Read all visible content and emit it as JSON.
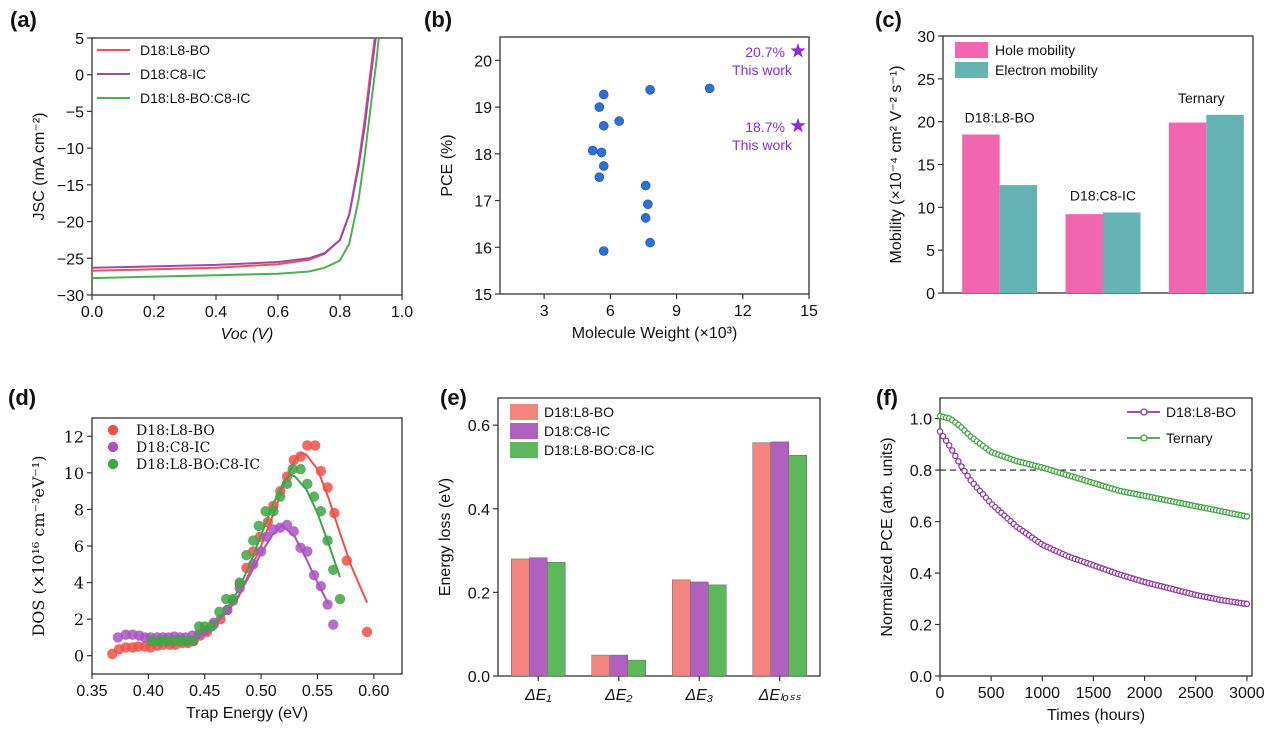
{
  "chart_data": [
    {
      "panel": "(a)",
      "type": "line",
      "xlabel": "Voc (V)",
      "ylabel": "JSC (mA cm⁻²)",
      "xlim": [
        0,
        1.0
      ],
      "ylim": [
        -30,
        5
      ],
      "xticks": [
        0,
        0.2,
        0.4,
        0.6,
        0.8,
        1.0
      ],
      "xtick_labels": [
        "0.0",
        "0.2",
        "0.4",
        "0.6",
        "0.8",
        "1.0"
      ],
      "yticks": [
        -30,
        -25,
        -20,
        -15,
        -10,
        -5,
        0,
        5
      ],
      "ytick_labels": [
        "−30",
        "−25",
        "−20",
        "−15",
        "−10",
        "−5",
        "0",
        "5"
      ],
      "legend": "top-left",
      "series": [
        {
          "name": "D18:L8-BO",
          "color": "#e8545c",
          "x": [
            0,
            0.2,
            0.4,
            0.6,
            0.7,
            0.75,
            0.8,
            0.83,
            0.86,
            0.88,
            0.9,
            0.912
          ],
          "y": [
            -26.7,
            -26.5,
            -26.3,
            -25.8,
            -25.2,
            -24.4,
            -22.5,
            -19,
            -12,
            -6,
            1,
            5
          ]
        },
        {
          "name": "D18:C8-IC",
          "color": "#a04aa8",
          "x": [
            0,
            0.2,
            0.4,
            0.6,
            0.7,
            0.75,
            0.8,
            0.83,
            0.86,
            0.88,
            0.9,
            0.915
          ],
          "y": [
            -26.3,
            -26.1,
            -25.9,
            -25.5,
            -25.0,
            -24.3,
            -22.5,
            -19,
            -12.5,
            -7,
            0,
            5
          ]
        },
        {
          "name": "D18:L8-BO:C8-IC",
          "color": "#4caf50",
          "x": [
            0,
            0.2,
            0.4,
            0.6,
            0.7,
            0.75,
            0.8,
            0.83,
            0.86,
            0.88,
            0.9,
            0.915,
            0.925
          ],
          "y": [
            -27.7,
            -27.5,
            -27.3,
            -27.1,
            -26.8,
            -26.3,
            -25.3,
            -23,
            -17,
            -11,
            -4,
            1,
            5
          ]
        }
      ]
    },
    {
      "panel": "(b)",
      "type": "scatter",
      "xlabel": "Molecule Weight (×10³)",
      "ylabel": "PCE (%)",
      "xlim": [
        1,
        15
      ],
      "ylim": [
        15,
        20.5
      ],
      "xticks": [
        3,
        6,
        9,
        12,
        15
      ],
      "xtick_labels": [
        "3",
        "6",
        "9",
        "12",
        "15"
      ],
      "yticks": [
        15,
        16,
        17,
        18,
        19,
        20
      ],
      "ytick_labels": [
        "15",
        "16",
        "17",
        "18",
        "19",
        "20"
      ],
      "point_color": "#2f6fd6",
      "points": [
        [
          5.7,
          19.27
        ],
        [
          5.5,
          19.0
        ],
        [
          5.7,
          18.6
        ],
        [
          6.4,
          18.7
        ],
        [
          5.2,
          18.07
        ],
        [
          5.6,
          18.03
        ],
        [
          5.7,
          17.74
        ],
        [
          5.5,
          17.5
        ],
        [
          5.7,
          15.92
        ],
        [
          7.8,
          19.37
        ],
        [
          10.5,
          19.4
        ],
        [
          7.6,
          17.32
        ],
        [
          7.7,
          16.92
        ],
        [
          7.6,
          16.63
        ],
        [
          7.8,
          16.1
        ]
      ],
      "star_color": "#8a2be2",
      "annotations": [
        {
          "x": 14.5,
          "y": 20.2,
          "value": "20.7%",
          "note": "This work"
        },
        {
          "x": 14.5,
          "y": 18.6,
          "value": "18.7%",
          "note": "This work"
        }
      ]
    },
    {
      "panel": "(c)",
      "type": "bar",
      "xlabel": "",
      "ylabel": "Mobility (×10⁻⁴ cm² V⁻² s⁻¹)",
      "ylim": [
        0,
        30
      ],
      "yticks": [
        0,
        5,
        10,
        15,
        20,
        25,
        30
      ],
      "ytick_labels": [
        "0",
        "5",
        "10",
        "15",
        "20",
        "25",
        "30"
      ],
      "categories": [
        "D18:L8-BO",
        "D18:C8-IC",
        "Ternary"
      ],
      "legend": "top-left",
      "series": [
        {
          "name": "Hole mobility",
          "color": "#f266b0",
          "values": [
            18.5,
            9.2,
            19.9
          ]
        },
        {
          "name": "Electron mobility",
          "color": "#66b3b3",
          "values": [
            12.6,
            9.4,
            20.8
          ]
        }
      ]
    },
    {
      "panel": "(d)",
      "type": "scatter",
      "xlabel": "Trap Energy (eV)",
      "ylabel": "DOS (×10¹⁶ cm⁻³eV⁻¹)",
      "xlim": [
        0.35,
        0.625
      ],
      "ylim": [
        -1,
        13
      ],
      "xticks": [
        0.35,
        0.4,
        0.45,
        0.5,
        0.55,
        0.6
      ],
      "xtick_labels": [
        "0.35",
        "0.40",
        "0.45",
        "0.50",
        "0.55",
        "0.60"
      ],
      "yticks": [
        0,
        2,
        4,
        6,
        8,
        10,
        12
      ],
      "ytick_labels": [
        "0",
        "2",
        "4",
        "6",
        "8",
        "10",
        "12"
      ],
      "legend": "top-left",
      "series": [
        {
          "name": "D18:L8-BO",
          "color": "#f0504a",
          "points": [
            [
              0.368,
              0.1
            ],
            [
              0.374,
              0.35
            ],
            [
              0.38,
              0.45
            ],
            [
              0.386,
              0.45
            ],
            [
              0.391,
              0.5
            ],
            [
              0.397,
              0.5
            ],
            [
              0.402,
              0.45
            ],
            [
              0.408,
              0.55
            ],
            [
              0.413,
              0.6
            ],
            [
              0.419,
              0.6
            ],
            [
              0.424,
              0.6
            ],
            [
              0.43,
              0.7
            ],
            [
              0.435,
              0.7
            ],
            [
              0.44,
              0.8
            ],
            [
              0.446,
              1.1
            ],
            [
              0.452,
              1.3
            ],
            [
              0.458,
              1.7
            ],
            [
              0.464,
              2.0
            ],
            [
              0.47,
              2.5
            ],
            [
              0.475,
              3.0
            ],
            [
              0.481,
              3.9
            ],
            [
              0.487,
              4.8
            ],
            [
              0.493,
              5.7
            ],
            [
              0.499,
              6.5
            ],
            [
              0.506,
              7.3
            ],
            [
              0.511,
              8.2
            ],
            [
              0.517,
              9.0
            ],
            [
              0.523,
              9.8
            ],
            [
              0.529,
              10.7
            ],
            [
              0.535,
              10.9
            ],
            [
              0.541,
              11.5
            ],
            [
              0.548,
              11.5
            ],
            [
              0.553,
              10.1
            ],
            [
              0.559,
              9.2
            ],
            [
              0.565,
              7.8
            ],
            [
              0.576,
              5.2
            ],
            [
              0.594,
              1.3
            ]
          ],
          "fit": [
            [
              0.45,
              1.2
            ],
            [
              0.46,
              1.8
            ],
            [
              0.47,
              2.4
            ],
            [
              0.48,
              3.2
            ],
            [
              0.49,
              4.6
            ],
            [
              0.5,
              6.0
            ],
            [
              0.51,
              7.6
            ],
            [
              0.52,
              9.3
            ],
            [
              0.53,
              10.7
            ],
            [
              0.536,
              11.1
            ],
            [
              0.54,
              11.0
            ],
            [
              0.55,
              10.2
            ],
            [
              0.56,
              8.6
            ],
            [
              0.57,
              6.7
            ],
            [
              0.58,
              4.9
            ],
            [
              0.594,
              2.9
            ]
          ]
        },
        {
          "name": "D18:C8-IC",
          "color": "#a855c0",
          "points": [
            [
              0.373,
              1.0
            ],
            [
              0.38,
              1.15
            ],
            [
              0.386,
              1.15
            ],
            [
              0.392,
              1.1
            ],
            [
              0.397,
              1.0
            ],
            [
              0.402,
              1.0
            ],
            [
              0.408,
              1.0
            ],
            [
              0.413,
              1.0
            ],
            [
              0.418,
              1.0
            ],
            [
              0.423,
              1.05
            ],
            [
              0.428,
              1.0
            ],
            [
              0.433,
              1.0
            ],
            [
              0.439,
              1.1
            ],
            [
              0.445,
              1.2
            ],
            [
              0.451,
              1.4
            ],
            [
              0.458,
              1.8
            ],
            [
              0.47,
              2.5
            ],
            [
              0.481,
              3.7
            ],
            [
              0.493,
              5.0
            ],
            [
              0.5,
              5.7
            ],
            [
              0.505,
              6.5
            ],
            [
              0.511,
              6.9
            ],
            [
              0.517,
              7.0
            ],
            [
              0.523,
              7.15
            ],
            [
              0.529,
              6.8
            ],
            [
              0.535,
              5.9
            ],
            [
              0.541,
              5.7
            ],
            [
              0.547,
              4.4
            ],
            [
              0.553,
              3.8
            ],
            [
              0.559,
              2.8
            ],
            [
              0.564,
              1.7
            ]
          ],
          "fit": [
            [
              0.45,
              1.4
            ],
            [
              0.46,
              1.8
            ],
            [
              0.47,
              2.4
            ],
            [
              0.48,
              3.3
            ],
            [
              0.49,
              4.4
            ],
            [
              0.5,
              5.6
            ],
            [
              0.51,
              6.6
            ],
            [
              0.518,
              7.1
            ],
            [
              0.52,
              7.05
            ],
            [
              0.53,
              6.5
            ],
            [
              0.54,
              5.3
            ],
            [
              0.55,
              4.0
            ],
            [
              0.56,
              2.8
            ]
          ]
        },
        {
          "name": "D18:L8-BO:C8-IC",
          "color": "#3fa548",
          "points": [
            [
              0.403,
              0.8
            ],
            [
              0.408,
              0.8
            ],
            [
              0.413,
              0.8
            ],
            [
              0.418,
              0.8
            ],
            [
              0.424,
              0.8
            ],
            [
              0.429,
              0.8
            ],
            [
              0.434,
              0.8
            ],
            [
              0.44,
              0.8
            ],
            [
              0.445,
              1.6
            ],
            [
              0.45,
              1.6
            ],
            [
              0.456,
              1.6
            ],
            [
              0.463,
              2.4
            ],
            [
              0.469,
              3.1
            ],
            [
              0.475,
              3.1
            ],
            [
              0.481,
              4.0
            ],
            [
              0.487,
              5.5
            ],
            [
              0.493,
              6.3
            ],
            [
              0.498,
              7.1
            ],
            [
              0.504,
              7.9
            ],
            [
              0.511,
              7.9
            ],
            [
              0.517,
              8.7
            ],
            [
              0.523,
              9.4
            ],
            [
              0.528,
              10.2
            ],
            [
              0.535,
              10.2
            ],
            [
              0.541,
              9.4
            ],
            [
              0.547,
              8.7
            ],
            [
              0.553,
              7.9
            ],
            [
              0.559,
              6.3
            ],
            [
              0.564,
              4.7
            ],
            [
              0.57,
              3.1
            ]
          ],
          "fit": [
            [
              0.44,
              1.0
            ],
            [
              0.45,
              1.4
            ],
            [
              0.46,
              1.9
            ],
            [
              0.47,
              2.6
            ],
            [
              0.48,
              3.6
            ],
            [
              0.49,
              5.0
            ],
            [
              0.5,
              6.6
            ],
            [
              0.51,
              8.2
            ],
            [
              0.52,
              9.5
            ],
            [
              0.526,
              9.9
            ],
            [
              0.53,
              9.8
            ],
            [
              0.54,
              9.1
            ],
            [
              0.55,
              7.8
            ],
            [
              0.56,
              6.1
            ],
            [
              0.57,
              4.3
            ]
          ]
        }
      ]
    },
    {
      "panel": "(e)",
      "type": "bar",
      "xlabel": "",
      "ylabel": "Energy loss (eV)",
      "ylim": [
        0,
        0.665
      ],
      "yticks": [
        0,
        0.2,
        0.4,
        0.6
      ],
      "ytick_labels": [
        "0.0",
        "0.2",
        "0.4",
        "0.6"
      ],
      "categories": [
        "ΔE₁",
        "ΔE₂",
        "ΔE₃",
        "ΔEₗₒₛₛ"
      ],
      "legend": "top-left",
      "series": [
        {
          "name": "D18:L8-BO",
          "color": "#f4847e",
          "values": [
            0.28,
            0.05,
            0.23,
            0.558
          ]
        },
        {
          "name": "D18:C8-IC",
          "color": "#b060bd",
          "values": [
            0.283,
            0.05,
            0.225,
            0.56
          ]
        },
        {
          "name": "D18:L8-BO:C8-IC",
          "color": "#5db85c",
          "values": [
            0.272,
            0.038,
            0.218,
            0.528
          ]
        }
      ]
    },
    {
      "panel": "(f)",
      "type": "line",
      "xlabel": "Times (hours)",
      "ylabel": "Normalized PCE (arb. units)",
      "xlim": [
        0,
        3050
      ],
      "ylim": [
        0,
        1.08
      ],
      "xticks": [
        0,
        500,
        1000,
        1500,
        2000,
        2500,
        3000
      ],
      "xtick_labels": [
        "0",
        "500",
        "1000",
        "1500",
        "2000",
        "2500",
        "3000"
      ],
      "yticks": [
        0,
        0.2,
        0.4,
        0.6,
        0.8,
        1.0
      ],
      "ytick_labels": [
        "0.0",
        "0.2",
        "0.4",
        "0.6",
        "0.8",
        "1.0"
      ],
      "reference_line": 0.8,
      "legend": "top-right",
      "series": [
        {
          "name": "D18:L8-BO",
          "color": "#8e3a9f",
          "x": [
            0,
            100,
            200,
            300,
            500,
            750,
            1000,
            1250,
            1500,
            1750,
            2000,
            2250,
            2500,
            2750,
            3000
          ],
          "y": [
            0.95,
            0.89,
            0.82,
            0.76,
            0.67,
            0.58,
            0.51,
            0.465,
            0.43,
            0.395,
            0.365,
            0.34,
            0.315,
            0.295,
            0.28
          ]
        },
        {
          "name": "Ternary",
          "color": "#3fa43f",
          "x": [
            0,
            100,
            200,
            300,
            500,
            750,
            1000,
            1250,
            1500,
            1750,
            2000,
            2250,
            2500,
            2750,
            3000
          ],
          "y": [
            1.01,
            1.0,
            0.97,
            0.93,
            0.87,
            0.835,
            0.81,
            0.78,
            0.75,
            0.72,
            0.7,
            0.68,
            0.66,
            0.64,
            0.62
          ]
        }
      ]
    }
  ]
}
